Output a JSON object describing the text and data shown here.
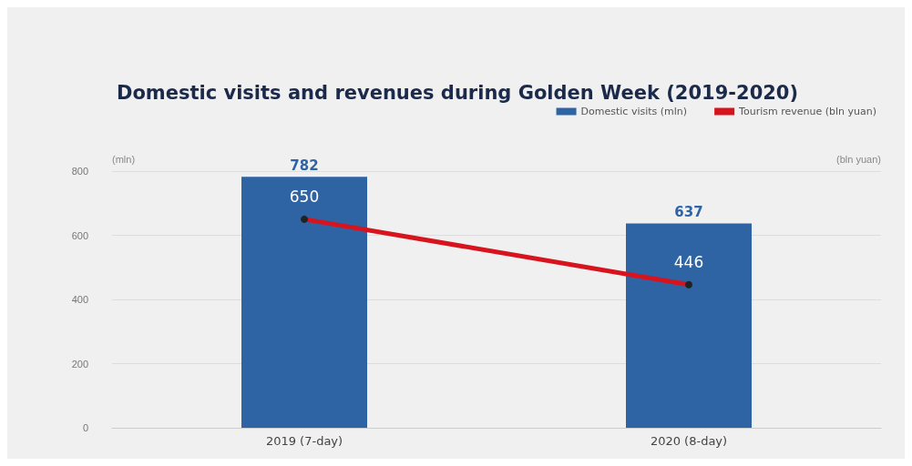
{
  "chart_data": {
    "type": "bar",
    "title": "Domestic visits and revenues during Golden Week (2019-2020)",
    "ylabel": "(mln)",
    "y2label": "(bln yuan)",
    "categories": [
      "2019 (7-day)",
      "2020 (8-day)"
    ],
    "series": [
      {
        "name": "Domestic visits (mln)",
        "color": "#2e64a4",
        "values": [
          782,
          637
        ]
      },
      {
        "name": "Tourism revenue (bln yuan)",
        "type": "line",
        "color": "#d7141e",
        "values": [
          650,
          446
        ]
      }
    ],
    "ylim": [
      0,
      800
    ],
    "yticks": [
      0,
      200,
      400,
      600,
      800
    ],
    "grid": "y",
    "legend": "top right",
    "data_labels": true,
    "marker": "circle"
  }
}
